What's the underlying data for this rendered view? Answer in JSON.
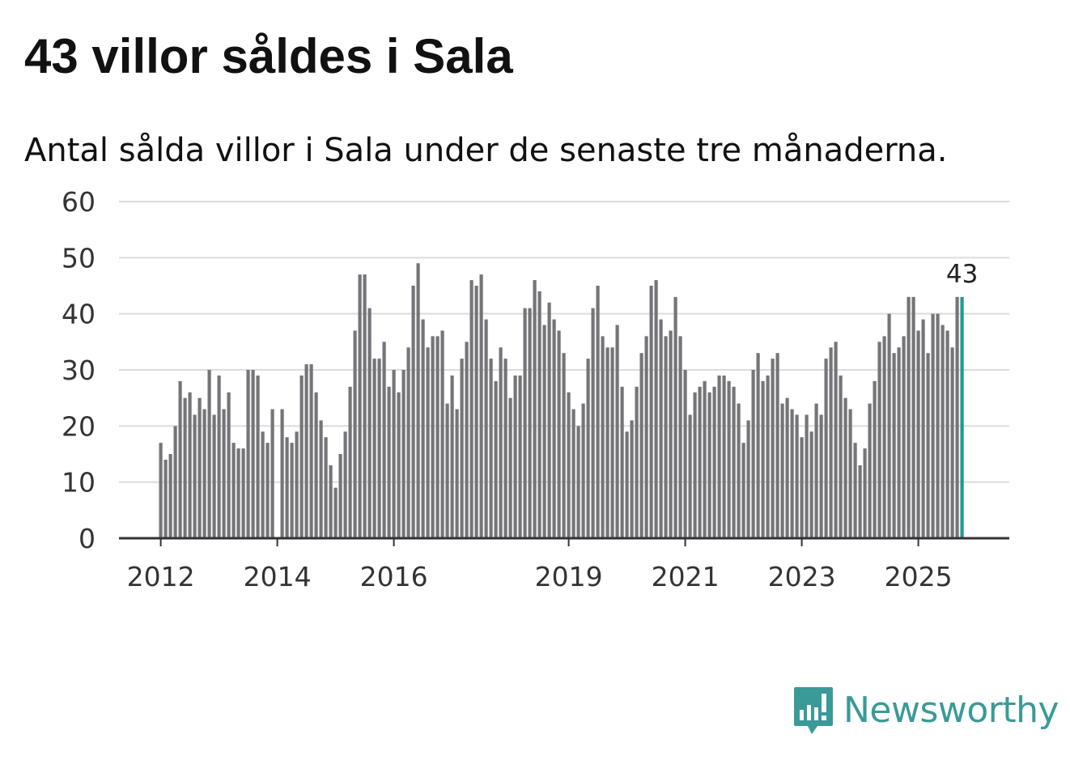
{
  "title": "43 villor såldes i Sala",
  "subtitle": "Antal sålda villor i Sala under de senaste tre månaderna.",
  "brand": {
    "name": "Newsworthy",
    "color": "#3a9a97",
    "icon": "bar-chart-speech-bubble-icon"
  },
  "colors": {
    "bar": "#757579",
    "highlight": "#1f9a92",
    "grid": "#dcdcdc",
    "axis": "#333333",
    "text": "#333333"
  },
  "chart_data": {
    "type": "bar",
    "title": "43 villor såldes i Sala",
    "xlabel": "",
    "ylabel": "",
    "ylim": [
      0,
      60
    ],
    "yticks": [
      0,
      10,
      20,
      30,
      40,
      50,
      60
    ],
    "xticks": [
      "2012",
      "2014",
      "2016",
      "2019",
      "2021",
      "2023",
      "2025"
    ],
    "grid": true,
    "start": "2012-01",
    "values": [
      17,
      14,
      15,
      20,
      28,
      25,
      26,
      22,
      25,
      23,
      30,
      22,
      29,
      23,
      26,
      17,
      16,
      16,
      30,
      30,
      29,
      19,
      17,
      23,
      0,
      23,
      18,
      17,
      19,
      29,
      31,
      31,
      26,
      21,
      18,
      13,
      9,
      15,
      19,
      27,
      37,
      47,
      47,
      41,
      32,
      32,
      35,
      27,
      30,
      26,
      30,
      34,
      45,
      49,
      39,
      34,
      36,
      36,
      37,
      24,
      29,
      23,
      32,
      35,
      46,
      45,
      47,
      39,
      32,
      28,
      34,
      32,
      25,
      29,
      29,
      41,
      41,
      46,
      44,
      38,
      42,
      39,
      37,
      33,
      26,
      23,
      20,
      24,
      32,
      41,
      45,
      36,
      34,
      34,
      38,
      27,
      19,
      21,
      27,
      33,
      36,
      45,
      46,
      39,
      36,
      37,
      43,
      36,
      30,
      22,
      26,
      27,
      28,
      26,
      27,
      29,
      29,
      28,
      27,
      24,
      17,
      21,
      30,
      33,
      28,
      29,
      32,
      33,
      24,
      25,
      23,
      22,
      18,
      22,
      19,
      24,
      22,
      32,
      34,
      35,
      29,
      25,
      23,
      17,
      13,
      16,
      24,
      28,
      35,
      36,
      40,
      33,
      34,
      36,
      43,
      43,
      37,
      39,
      33,
      40,
      40,
      38,
      37,
      34,
      43,
      43
    ],
    "highlight_index": 165,
    "highlight_label": "43"
  }
}
